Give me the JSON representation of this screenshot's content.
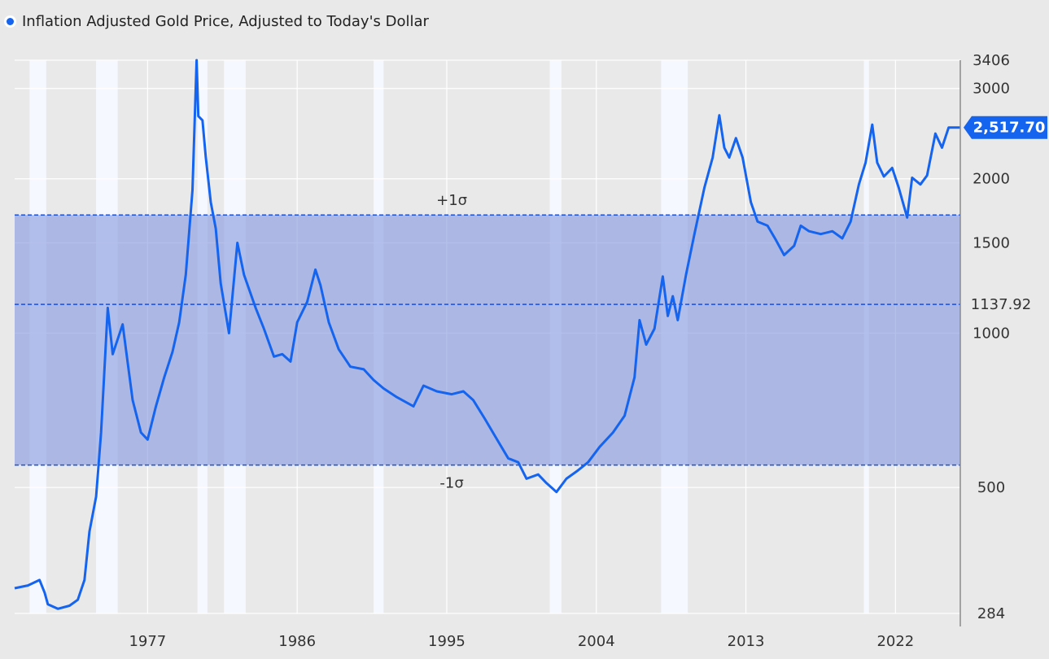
{
  "chart_data": {
    "type": "line",
    "title": "Inflation Adjusted Gold Price, Adjusted to Today's Dollar",
    "xlabel": "",
    "ylabel": "",
    "y_scale": "log",
    "ylim": [
      284,
      3406
    ],
    "xlim": [
      1969.0,
      2025.9
    ],
    "x_ticks": [
      1977,
      1986,
      1995,
      2004,
      2013,
      2022
    ],
    "x_tick_labels": [
      "1977",
      "1986",
      "1995",
      "2004",
      "2013",
      "2022"
    ],
    "y_ticks": [
      284,
      500,
      1000,
      1500,
      2000,
      3000,
      3406
    ],
    "y_tick_labels": [
      "284",
      "500",
      "1000",
      "1500",
      "2000",
      "3000",
      "3406"
    ],
    "grid": true,
    "legend": "top-left",
    "series": [
      {
        "name": "Inflation Adjusted Gold Price, Adjusted to Today's Dollar",
        "color": "#1464f0",
        "x": [
          1969.0,
          1969.8,
          1970.5,
          1970.8,
          1971.0,
          1971.6,
          1972.3,
          1972.8,
          1973.2,
          1973.5,
          1973.9,
          1974.2,
          1974.6,
          1974.9,
          1975.5,
          1976.1,
          1976.6,
          1977.0,
          1977.5,
          1978.0,
          1978.5,
          1978.9,
          1979.3,
          1979.7,
          1979.95,
          1980.05,
          1980.3,
          1980.5,
          1980.8,
          1981.1,
          1981.4,
          1981.9,
          1982.4,
          1982.8,
          1983.1,
          1983.5,
          1984.0,
          1984.6,
          1985.1,
          1985.6,
          1986.0,
          1986.6,
          1987.1,
          1987.4,
          1987.9,
          1988.5,
          1989.2,
          1990.0,
          1990.6,
          1991.2,
          1992.0,
          1993.0,
          1993.6,
          1994.4,
          1995.3,
          1996.0,
          1996.6,
          1997.3,
          1997.9,
          1998.7,
          1999.3,
          1999.8,
          2000.5,
          2001.0,
          2001.6,
          2002.2,
          2002.9,
          2003.5,
          2004.2,
          2005.0,
          2005.7,
          2006.3,
          2006.6,
          2007.0,
          2007.5,
          2008.0,
          2008.3,
          2008.6,
          2008.9,
          2009.4,
          2009.9,
          2010.5,
          2011.0,
          2011.4,
          2011.7,
          2012.0,
          2012.4,
          2012.8,
          2013.3,
          2013.7,
          2014.3,
          2014.8,
          2015.3,
          2015.9,
          2016.3,
          2016.8,
          2017.5,
          2018.2,
          2018.8,
          2019.3,
          2019.8,
          2020.2,
          2020.6,
          2020.9,
          2021.3,
          2021.8,
          2022.2,
          2022.7,
          2023.0,
          2023.5,
          2023.9,
          2024.4,
          2024.8,
          2025.2,
          2025.6,
          2025.9
        ],
        "y": [
          318,
          322,
          330,
          312,
          296,
          290,
          294,
          302,
          330,
          410,
          480,
          640,
          1120,
          910,
          1040,
          740,
          640,
          620,
          720,
          820,
          920,
          1050,
          1300,
          1900,
          3406,
          2650,
          2600,
          2200,
          1800,
          1600,
          1250,
          1000,
          1500,
          1300,
          1220,
          1120,
          1020,
          900,
          910,
          880,
          1050,
          1150,
          1330,
          1240,
          1050,
          930,
          860,
          850,
          810,
          780,
          750,
          720,
          790,
          770,
          760,
          770,
          740,
          680,
          630,
          570,
          560,
          520,
          530,
          510,
          490,
          520,
          540,
          560,
          600,
          640,
          690,
          820,
          1060,
          950,
          1020,
          1290,
          1080,
          1180,
          1060,
          1300,
          1560,
          1920,
          2200,
          2660,
          2300,
          2200,
          2400,
          2200,
          1800,
          1650,
          1620,
          1520,
          1420,
          1480,
          1620,
          1580,
          1560,
          1580,
          1530,
          1650,
          1950,
          2150,
          2550,
          2150,
          2020,
          2100,
          1920,
          1680,
          2010,
          1950,
          2030,
          2450,
          2300,
          2517.7,
          2517.7,
          2517.7
        ]
      }
    ],
    "bands": [
      {
        "name": "+1σ",
        "value": 1700
      },
      {
        "name": "mean",
        "value": 1137.92
      },
      {
        "name": "-1σ",
        "value": 553
      }
    ],
    "band_labels": {
      "upper": "+1σ",
      "lower": "-1σ",
      "mean": "1137.92"
    },
    "recessions": [
      [
        1969.9,
        1970.9
      ],
      [
        1973.9,
        1975.2
      ],
      [
        1980.0,
        1980.6
      ],
      [
        1981.6,
        1982.9
      ],
      [
        1990.6,
        1991.2
      ],
      [
        2001.2,
        2001.9
      ],
      [
        2007.9,
        2009.5
      ],
      [
        2020.1,
        2020.4
      ]
    ],
    "last_value_label": "2,517.70"
  },
  "colors": {
    "line": "#1464f0",
    "band_fill": "#8c9ee0",
    "dashed": "#1d4fd8",
    "recession": "#f6f8ff",
    "background": "#e9e9e9",
    "price_tag": "#1464f0"
  }
}
